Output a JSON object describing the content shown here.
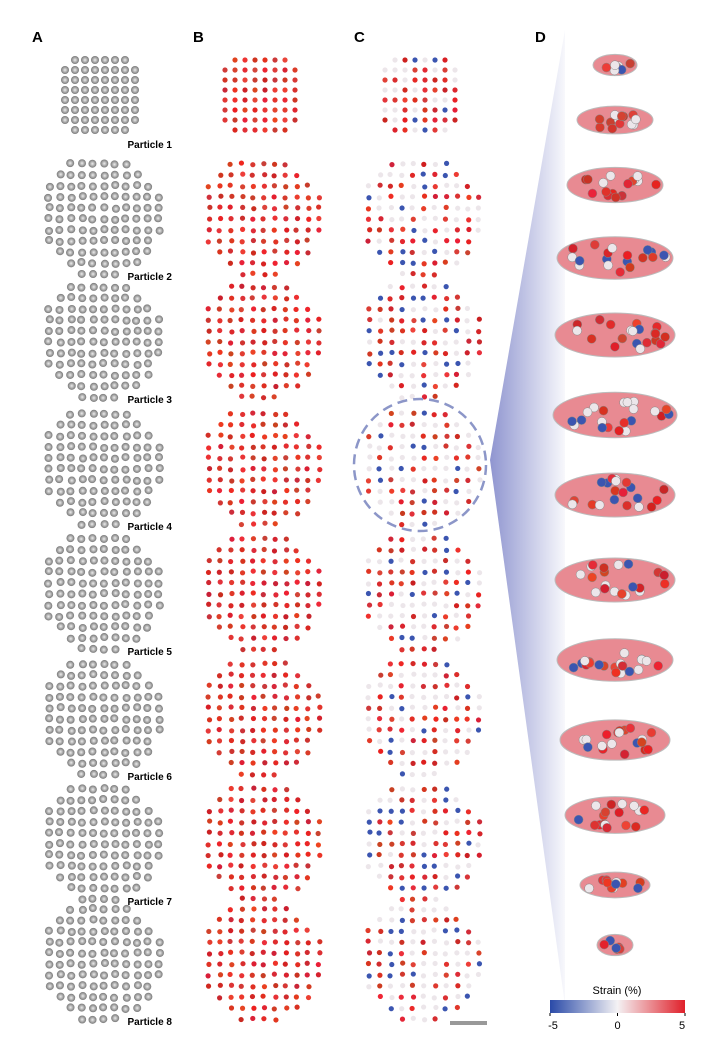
{
  "panels": [
    "A",
    "B",
    "C",
    "D"
  ],
  "particles": [
    "Particle 1",
    "Particle 2",
    "Particle 3",
    "Particle 4",
    "Particle 5",
    "Particle 6",
    "Particle 7",
    "Particle 8"
  ],
  "colorbar": {
    "label": "Strain (%)",
    "ticks": [
      -5,
      0,
      5
    ]
  }
}
